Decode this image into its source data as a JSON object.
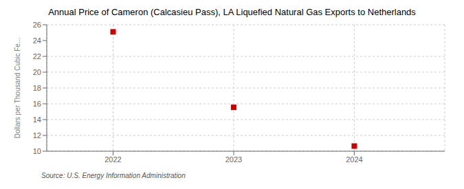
{
  "chart_data": {
    "type": "scatter",
    "title": "Annual Price of Cameron (Calcasieu Pass), LA Liquefied Natural Gas Exports to Netherlands",
    "ylabel": "Dollars per Thousand Cubic Fe...",
    "annotation": "Source: U.S. Energy Information Administration",
    "x": [
      2022,
      2023,
      2024
    ],
    "values": [
      25.1,
      15.55,
      10.65
    ],
    "color": "#cc0000",
    "marker": "square",
    "xlim": [
      2021.45,
      2024.75
    ],
    "xticks": [
      2022,
      2023,
      2024
    ],
    "ylim": [
      10,
      26
    ],
    "yticks": [
      10,
      12,
      14,
      16,
      18,
      20,
      22,
      24,
      26
    ],
    "grid": true
  }
}
